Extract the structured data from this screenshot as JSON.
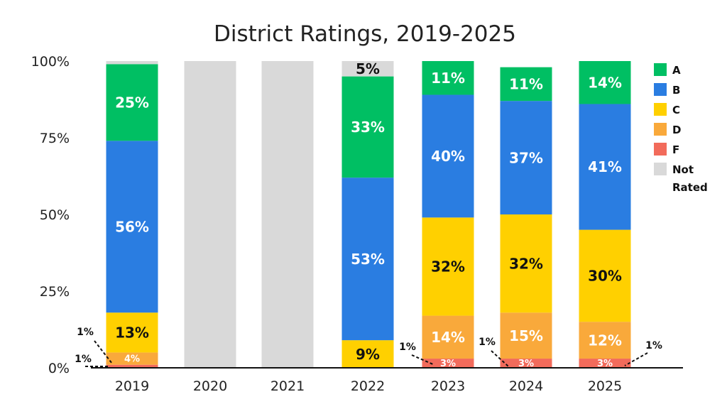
{
  "chart_data": {
    "type": "bar",
    "stacked": true,
    "title": "District Ratings, 2019-2025",
    "xlabel": "",
    "ylabel": "",
    "ylim": [
      0,
      100
    ],
    "yticks": [
      "0%",
      "25%",
      "50%",
      "75%",
      "100%"
    ],
    "categories": [
      "2019",
      "2020",
      "2021",
      "2022",
      "2023",
      "2024",
      "2025"
    ],
    "series": [
      {
        "name": "F",
        "color": "#F26B5B",
        "values": [
          1,
          0,
          0,
          0,
          3,
          3,
          3
        ],
        "labels": [
          "",
          "",
          "",
          "",
          "3%",
          "3%",
          "3%"
        ]
      },
      {
        "name": "D",
        "color": "#F9A93B",
        "values": [
          4,
          0,
          0,
          0,
          14,
          15,
          12
        ],
        "labels": [
          "4%",
          "",
          "",
          "",
          "14%",
          "15%",
          "12%"
        ]
      },
      {
        "name": "C",
        "color": "#FFD000",
        "values": [
          13,
          0,
          0,
          9,
          32,
          32,
          30
        ],
        "labels": [
          "13%",
          "",
          "",
          "9%",
          "32%",
          "32%",
          "30%"
        ]
      },
      {
        "name": "B",
        "color": "#2A7DE1",
        "values": [
          56,
          0,
          0,
          53,
          40,
          37,
          41
        ],
        "labels": [
          "56%",
          "",
          "",
          "53%",
          "40%",
          "37%",
          "41%"
        ]
      },
      {
        "name": "A",
        "color": "#00BF63",
        "values": [
          25,
          0,
          0,
          33,
          11,
          11,
          14
        ],
        "labels": [
          "25%",
          "",
          "",
          "33%",
          "11%",
          "11%",
          "14%"
        ]
      },
      {
        "name": "Not Rated",
        "color": "#D9D9D9",
        "values": [
          1,
          100,
          100,
          5,
          0,
          0,
          0
        ],
        "labels": [
          "",
          "",
          "",
          "5%",
          "",
          "",
          ""
        ]
      }
    ],
    "callouts": [
      "1%",
      "1%",
      "1%",
      "1%",
      "1%"
    ],
    "legend": {
      "position": "right",
      "items": [
        {
          "label": "A",
          "color": "#00BF63"
        },
        {
          "label": "B",
          "color": "#2A7DE1"
        },
        {
          "label": "C",
          "color": "#FFD000"
        },
        {
          "label": "D",
          "color": "#F9A93B"
        },
        {
          "label": "F",
          "color": "#F26B5B"
        },
        {
          "label": "Not",
          "label2": "Rated",
          "color": "#D9D9D9"
        }
      ]
    },
    "grid": false
  }
}
